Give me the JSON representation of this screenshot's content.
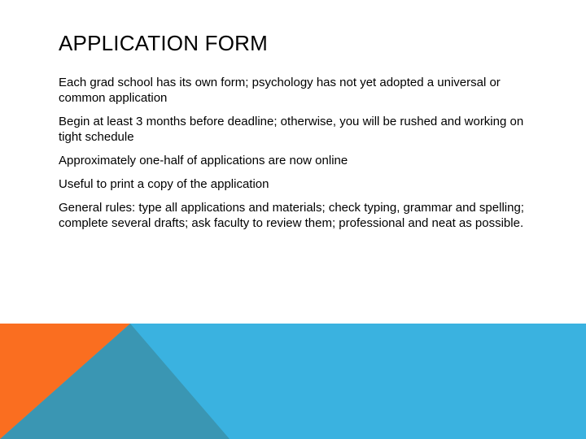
{
  "slide": {
    "title": "APPLICATION FORM",
    "bullets": [
      "Each grad school has its own form; psychology has not yet adopted a universal or common application",
      "Begin at least 3 months before deadline; otherwise, you will be rushed and working on tight schedule",
      "Approximately one-half of applications are  now online",
      "Useful to print a copy of the application",
      "General rules: type all applications and materials; check typing, grammar and spelling; complete several drafts; ask faculty to review them; professional and neat as possible."
    ]
  },
  "theme": {
    "band_blue": "#3AB2E0",
    "triangle_teal": "#3A96B3",
    "triangle_orange": "#FA6E20"
  }
}
